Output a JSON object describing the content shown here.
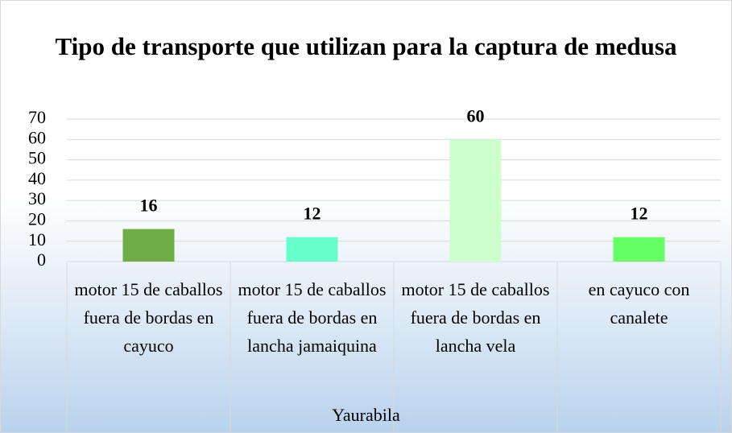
{
  "chart_data": {
    "type": "bar",
    "title": "Tipo de transporte que utilizan para la captura de medusa",
    "x_label": "Yaurabila",
    "categories": [
      "motor 15 de caballos fuera de bordas en cayuco",
      "motor 15 de caballos fuera de bordas en lancha jamaiquina",
      "motor 15 de caballos fuera de bordas en lancha vela",
      "en cayuco con canalete"
    ],
    "values": [
      16,
      12,
      60,
      12
    ],
    "colors": [
      "#70ad47",
      "#66ffcc",
      "#ccffcc",
      "#66ff66"
    ],
    "ylim": [
      0,
      70
    ],
    "yticks": [
      0,
      10,
      20,
      30,
      40,
      50,
      60,
      70
    ],
    "grid": true
  }
}
